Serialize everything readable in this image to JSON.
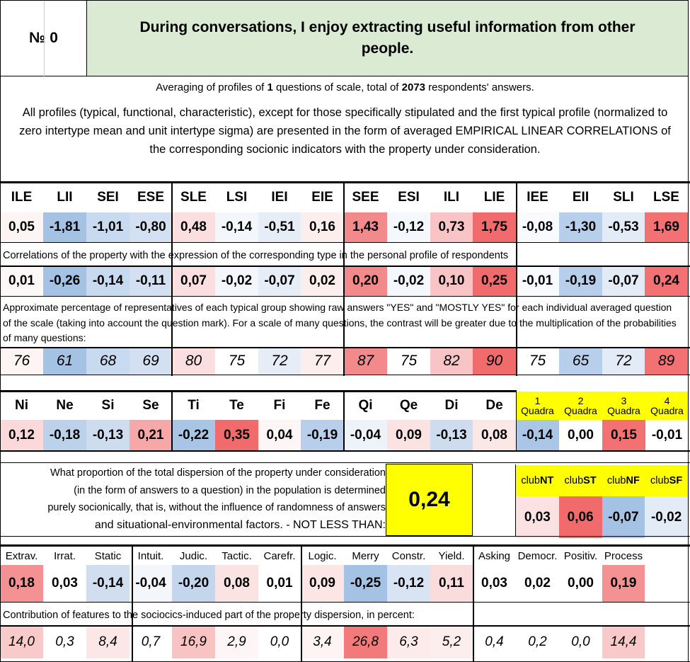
{
  "header": {
    "number_label": "№ 0",
    "question": "During conversations, I enjoy extracting useful information from other people."
  },
  "notes": {
    "averaging_pre": "Averaging of profiles of ",
    "averaging_n_questions": "1",
    "averaging_mid": " questions of scale, total of ",
    "averaging_n_answers": "2073",
    "averaging_post": " respondents' answers.",
    "profiles_note": "All profiles (typical, functional, characteristic), except for those specifically stipulated and the first typical profile (normalized to zero intertype mean and unit intertype sigma) are presented in the form of averaged EMPIRICAL LINEAR CORRELATIONS of the corresponding socionic indicators with the property under consideration."
  },
  "types": {
    "labels": [
      "ILE",
      "LII",
      "SEI",
      "ESE",
      "SLE",
      "LSI",
      "IEI",
      "EIE",
      "SEE",
      "ESI",
      "ILI",
      "LIE",
      "IEE",
      "EII",
      "SLI",
      "LSE"
    ],
    "normalized": [
      "0,05",
      "-1,81",
      "-1,01",
      "-0,80",
      "0,48",
      "-0,14",
      "-0,51",
      "0,16",
      "1,43",
      "-0,12",
      "0,73",
      "1,75",
      "-0,08",
      "-1,30",
      "-0,53",
      "1,69"
    ],
    "normalized_colors": [
      "#fdf4f4",
      "#a4c2e4",
      "#c8daef",
      "#d2e0f1",
      "#fbdfe0",
      "#f3f6fb",
      "#e6edf7",
      "#fdeeee",
      "#f2898a",
      "#f4f7fb",
      "#f8c4c5",
      "#f26b6c",
      "#f8fafd",
      "#b7cfea",
      "#e2ebf6",
      "#f37172"
    ],
    "corr_caption": "Correlations of the property with the expression of the corresponding type in the personal profile of respondents",
    "correlations": [
      "0,01",
      "-0,26",
      "-0,14",
      "-0,11",
      "0,07",
      "-0,02",
      "-0,07",
      "0,02",
      "0,20",
      "-0,02",
      "0,10",
      "0,25",
      "-0,01",
      "-0,19",
      "-0,07",
      "0,24"
    ],
    "correlation_colors": [
      "#fdf8f8",
      "#a4c2e4",
      "#c8daef",
      "#d2e0f1",
      "#fbdfe0",
      "#f3f6fb",
      "#e6edf7",
      "#fdeeee",
      "#f2898a",
      "#f4f7fb",
      "#f8c4c5",
      "#f26b6c",
      "#f8fafd",
      "#b7cfea",
      "#e2ebf6",
      "#f37172"
    ],
    "pct_caption": "Approximate percentage of representatives of each typical group showing raw answers \"YES\" and \"MOSTLY YES\" for each individual averaged question of the scale (taking into account the question mark). For a scale of many questions, the contrast will be greater due to the multiplication of the probabilities of many questions:",
    "percentages": [
      "76",
      "61",
      "68",
      "69",
      "80",
      "75",
      "72",
      "77",
      "87",
      "75",
      "82",
      "90",
      "75",
      "65",
      "72",
      "89"
    ],
    "percentage_colors": [
      "#fdf4f4",
      "#a4c2e4",
      "#c8daef",
      "#d2e0f1",
      "#fbdfe0",
      "#ffffff",
      "#e6edf7",
      "#fdeeee",
      "#f2898a",
      "#ffffff",
      "#f8c4c5",
      "#f26b6c",
      "#ffffff",
      "#b7cfea",
      "#e2ebf6",
      "#f37172"
    ]
  },
  "functions": {
    "labels": [
      "Ni",
      "Ne",
      "Si",
      "Se",
      "Ti",
      "Te",
      "Fi",
      "Fe",
      "Qi",
      "Qe",
      "Di",
      "De"
    ],
    "values": [
      "0,12",
      "-0,18",
      "-0,13",
      "0,21",
      "-0,22",
      "0,35",
      "0,04",
      "-0,19",
      "-0,04",
      "0,09",
      "-0,13",
      "0,08"
    ],
    "colors": [
      "#fbd9da",
      "#bcd2eb",
      "#cddcef",
      "#f6a7a8",
      "#a8c5e5",
      "#f26b6c",
      "#fdf6f6",
      "#b7cfea",
      "#eef3f9",
      "#fbe3e4",
      "#cddcef",
      "#fce7e7"
    ],
    "quadras": [
      {
        "num": "1",
        "label": "Quadra",
        "value": "-0,14",
        "color": "#aac6e6"
      },
      {
        "num": "2",
        "label": "Quadra",
        "value": "0,00",
        "color": "#ffffff"
      },
      {
        "num": "3",
        "label": "Quadra",
        "value": "0,15",
        "color": "#f37172"
      },
      {
        "num": "4",
        "label": "Quadra",
        "value": "-0,01",
        "color": "#ffffff"
      }
    ]
  },
  "dispersion": {
    "text_lines": [
      "What proportion of the total dispersion of the property under consideration",
      "(in the form of answers to a question) in the population is determined",
      "purely socionically, that is, without the influence of randomness of answers",
      "and situational-environmental factors. - NOT LESS THAN:"
    ],
    "value": "0,24"
  },
  "clubs": [
    {
      "prefix": "club",
      "suffix": "NT",
      "value": "0,03",
      "color": "#fbe1e2"
    },
    {
      "prefix": "club",
      "suffix": "ST",
      "value": "0,06",
      "color": "#f26b6c"
    },
    {
      "prefix": "club",
      "suffix": "NF",
      "value": "-0,07",
      "color": "#a4c2e4"
    },
    {
      "prefix": "club",
      "suffix": "SF",
      "value": "-0,02",
      "color": "#e3ecf6"
    }
  ],
  "features": {
    "labels": [
      "Extrav.",
      "Irrat.",
      "Static",
      "Intuit.",
      "Judic.",
      "Tactic.",
      "Carefr.",
      "Logic.",
      "Merry",
      "Constr.",
      "Yield.",
      "Asking",
      "Democr.",
      "Positiv.",
      "Process"
    ],
    "values": [
      "0,18",
      "0,03",
      "-0,14",
      "-0,04",
      "-0,20",
      "0,08",
      "0,01",
      "0,09",
      "-0,25",
      "-0,12",
      "0,11",
      "0,03",
      "0,02",
      "0,00",
      "0,19"
    ],
    "value_colors": [
      "#f49192",
      "#ffffff",
      "#d0def0",
      "#f3f7fb",
      "#c3d6ed",
      "#fbe3e4",
      "#ffffff",
      "#fce5e5",
      "#a4c2e4",
      "#d8e4f3",
      "#fbdcdd",
      "#ffffff",
      "#ffffff",
      "#ffffff",
      "#f49192"
    ],
    "contrib_caption": "Contribution of features to the sociocics-induced part of the property dispersion, in percent:",
    "contributions": [
      "14,0",
      "0,3",
      "8,4",
      "0,7",
      "16,9",
      "2,9",
      "0,0",
      "3,4",
      "26,8",
      "6,3",
      "5,2",
      "0,4",
      "0,2",
      "0,0",
      "14,4"
    ],
    "contribution_colors": [
      "#f9caca",
      "#ffffff",
      "#fce7e7",
      "#ffffff",
      "#f9c3c3",
      "#fef6f6",
      "#ffffff",
      "#fef4f4",
      "#f27a7b",
      "#fdeaea",
      "#fdeeee",
      "#ffffff",
      "#ffffff",
      "#ffffff",
      "#f9c8c8"
    ]
  }
}
